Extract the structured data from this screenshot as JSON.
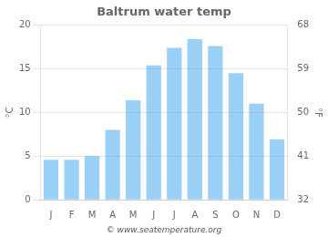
{
  "chart_data": {
    "type": "bar",
    "title": "Baltrum water temp",
    "categories": [
      "J",
      "F",
      "M",
      "A",
      "M",
      "J",
      "J",
      "A",
      "S",
      "O",
      "N",
      "D"
    ],
    "values": [
      4.6,
      4.6,
      5.0,
      8.0,
      11.4,
      15.4,
      17.4,
      18.4,
      17.6,
      14.5,
      11.0,
      6.9
    ],
    "ylabel": "°C",
    "y2label": "°F",
    "ylim": [
      0,
      20
    ],
    "yticks": [
      0,
      5,
      10,
      15,
      20
    ],
    "y2lim": [
      32,
      68
    ],
    "y2ticks": [
      32,
      41,
      50,
      59,
      68
    ],
    "annotation": "© www.seatemperature.org",
    "grid": true
  }
}
